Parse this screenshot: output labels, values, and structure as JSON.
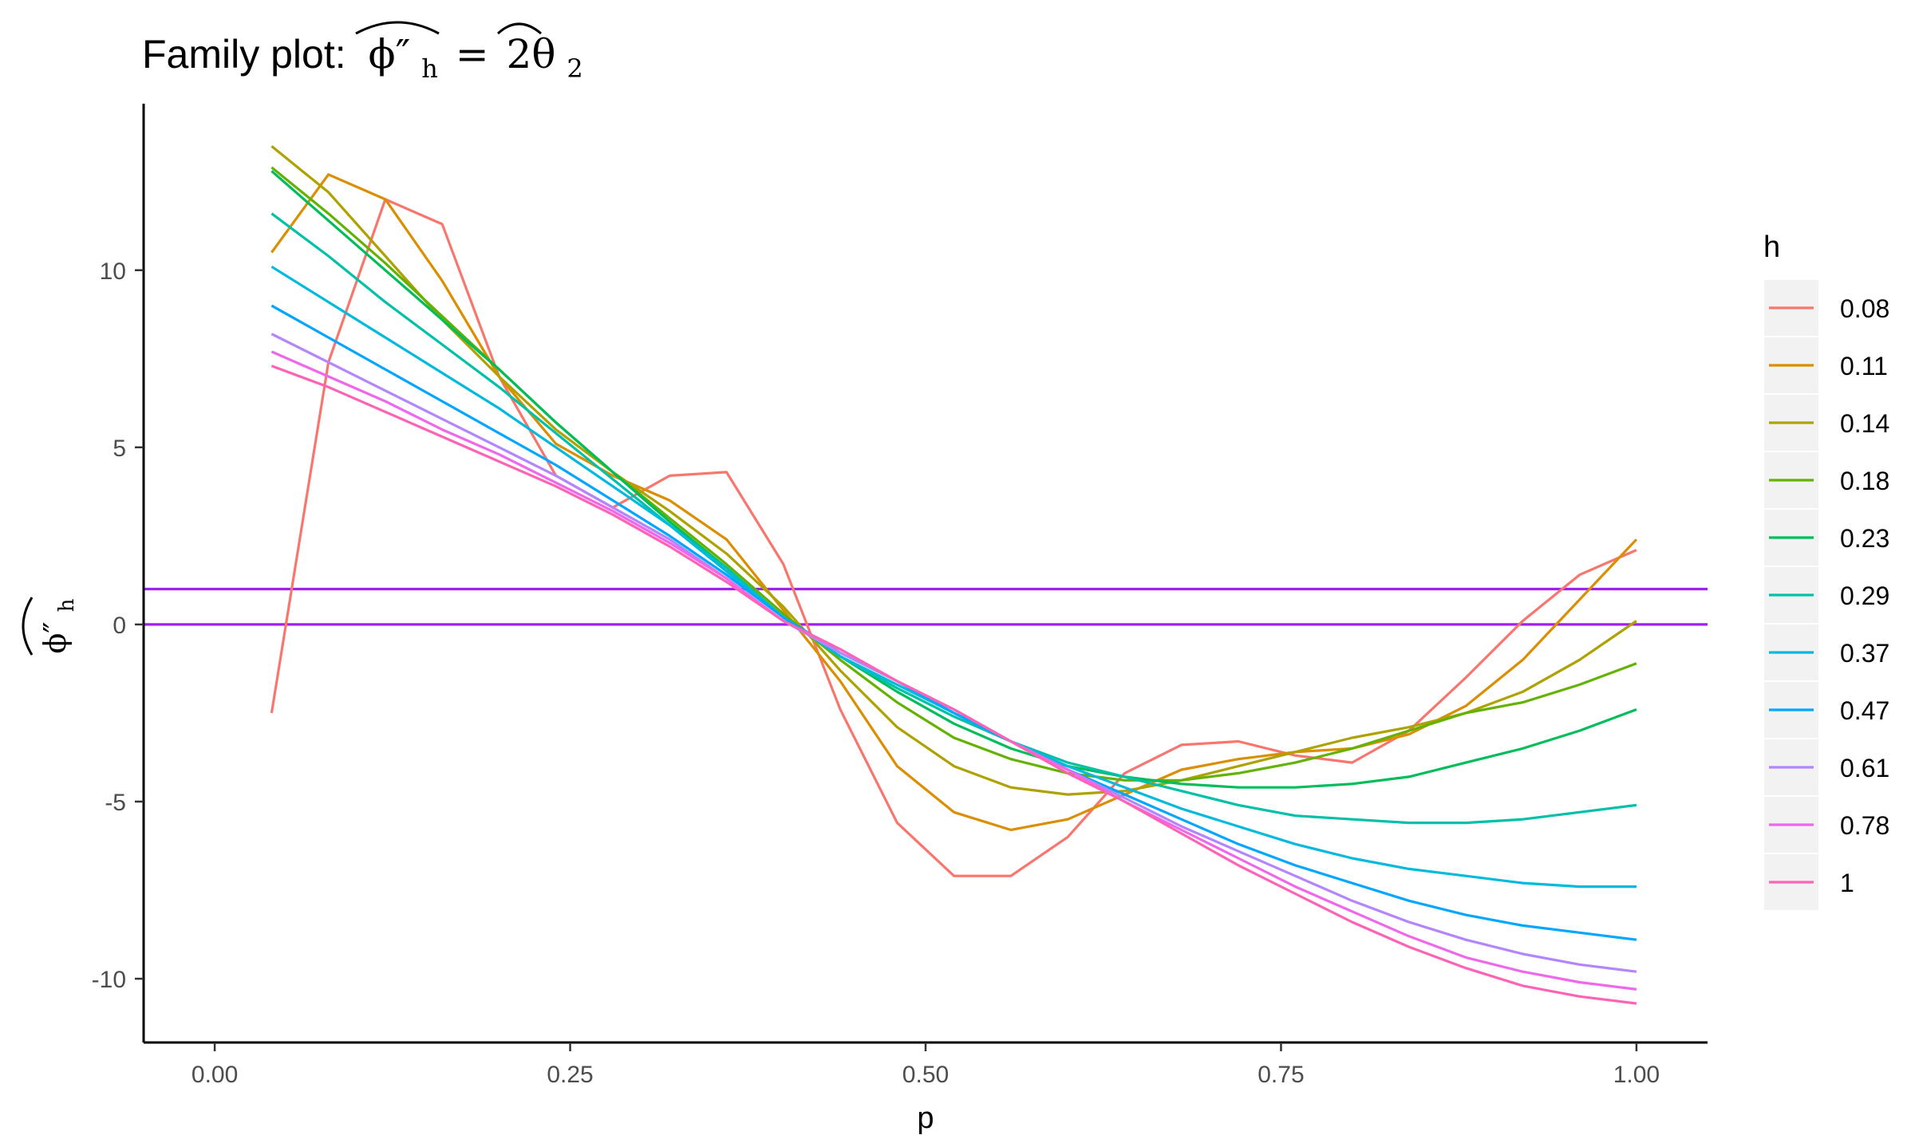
{
  "chart_data": {
    "type": "line",
    "title": "Family plot:",
    "title_math_lhs": "ϕ″",
    "title_math_lhs_sub": "h",
    "title_math_eq": "=",
    "title_math_rhs": "2θ",
    "title_math_rhs_sub": "2",
    "xlabel": "p",
    "ylabel_main": "ϕ″",
    "ylabel_sub": "h",
    "xlim": [
      -0.05,
      1.05
    ],
    "ylim": [
      -11.8,
      14.7
    ],
    "xticks": [
      0.0,
      0.25,
      0.5,
      0.75,
      1.0
    ],
    "xtick_labels": [
      "0.00",
      "0.25",
      "0.50",
      "0.75",
      "1.00"
    ],
    "yticks": [
      -10,
      -5,
      0,
      5,
      10
    ],
    "ytick_labels": [
      "-10",
      "-5",
      "0",
      "5",
      "10"
    ],
    "hlines": [
      {
        "y": 1,
        "color": "#A020F0"
      },
      {
        "y": 0,
        "color": "#A020F0"
      }
    ],
    "legend_title": "h",
    "legend_position": "right",
    "x": [
      0.04,
      0.08,
      0.12,
      0.16,
      0.2,
      0.24,
      0.28,
      0.32,
      0.36,
      0.4,
      0.44,
      0.48,
      0.52,
      0.56,
      0.6,
      0.64,
      0.68,
      0.72,
      0.76,
      0.8,
      0.84,
      0.88,
      0.92,
      0.96,
      1.0
    ],
    "series": [
      {
        "name": "0.08",
        "color": "#F8766D",
        "values": [
          -2.5,
          7.4,
          12.0,
          11.3,
          7.0,
          4.2,
          3.3,
          4.2,
          4.3,
          1.7,
          -2.4,
          -5.6,
          -7.1,
          -7.1,
          -6.0,
          -4.2,
          -3.4,
          -3.3,
          -3.7,
          -3.9,
          -3.0,
          -1.5,
          0.1,
          1.4,
          2.1
        ]
      },
      {
        "name": "0.11",
        "color": "#DB8E00",
        "values": [
          10.5,
          12.7,
          12.0,
          9.7,
          7.0,
          5.1,
          4.2,
          3.5,
          2.4,
          0.4,
          -1.6,
          -4.0,
          -5.3,
          -5.8,
          -5.5,
          -4.8,
          -4.1,
          -3.8,
          -3.6,
          -3.5,
          -3.1,
          -2.3,
          -1.0,
          0.7,
          2.4
        ]
      },
      {
        "name": "0.14",
        "color": "#AEA200",
        "values": [
          13.5,
          12.2,
          10.4,
          8.6,
          7.0,
          5.5,
          4.3,
          3.2,
          2.0,
          0.5,
          -1.3,
          -2.9,
          -4.0,
          -4.6,
          -4.8,
          -4.7,
          -4.4,
          -4.0,
          -3.6,
          -3.2,
          -2.9,
          -2.5,
          -1.9,
          -1.0,
          0.1
        ]
      },
      {
        "name": "0.18",
        "color": "#64B200",
        "values": [
          12.9,
          11.6,
          10.2,
          8.7,
          7.2,
          5.7,
          4.3,
          3.0,
          1.7,
          0.3,
          -1.0,
          -2.2,
          -3.2,
          -3.8,
          -4.2,
          -4.4,
          -4.4,
          -4.2,
          -3.9,
          -3.5,
          -3.0,
          -2.5,
          -2.2,
          -1.7,
          -1.1
        ]
      },
      {
        "name": "0.23",
        "color": "#00BD5C",
        "values": [
          12.8,
          11.4,
          10.0,
          8.6,
          7.2,
          5.7,
          4.3,
          2.9,
          1.6,
          0.2,
          -0.9,
          -1.9,
          -2.8,
          -3.5,
          -4.0,
          -4.3,
          -4.5,
          -4.6,
          -4.6,
          -4.5,
          -4.3,
          -3.9,
          -3.5,
          -3.0,
          -2.4
        ]
      },
      {
        "name": "0.29",
        "color": "#00C1A7",
        "values": [
          11.6,
          10.4,
          9.1,
          7.9,
          6.7,
          5.4,
          4.1,
          2.8,
          1.6,
          0.2,
          -0.9,
          -1.8,
          -2.6,
          -3.3,
          -3.9,
          -4.3,
          -4.7,
          -5.1,
          -5.4,
          -5.5,
          -5.6,
          -5.6,
          -5.5,
          -5.3,
          -5.1
        ]
      },
      {
        "name": "0.37",
        "color": "#00BADE",
        "values": [
          10.1,
          9.1,
          8.1,
          7.1,
          6.1,
          5.0,
          3.9,
          2.8,
          1.5,
          0.2,
          -0.9,
          -1.7,
          -2.5,
          -3.3,
          -4.0,
          -4.6,
          -5.2,
          -5.7,
          -6.2,
          -6.6,
          -6.9,
          -7.1,
          -7.3,
          -7.4,
          -7.4
        ]
      },
      {
        "name": "0.47",
        "color": "#00A6FF",
        "values": [
          9.0,
          8.1,
          7.2,
          6.3,
          5.4,
          4.5,
          3.5,
          2.5,
          1.4,
          0.2,
          -0.8,
          -1.6,
          -2.5,
          -3.3,
          -4.1,
          -4.8,
          -5.5,
          -6.2,
          -6.8,
          -7.3,
          -7.8,
          -8.2,
          -8.5,
          -8.7,
          -8.9
        ]
      },
      {
        "name": "0.61",
        "color": "#B385FF",
        "values": [
          8.2,
          7.4,
          6.6,
          5.8,
          5.0,
          4.2,
          3.3,
          2.4,
          1.3,
          0.1,
          -0.8,
          -1.6,
          -2.4,
          -3.3,
          -4.1,
          -4.9,
          -5.7,
          -6.4,
          -7.1,
          -7.8,
          -8.4,
          -8.9,
          -9.3,
          -9.6,
          -9.8
        ]
      },
      {
        "name": "0.78",
        "color": "#EF67EB",
        "values": [
          7.7,
          7.0,
          6.3,
          5.5,
          4.8,
          4.0,
          3.2,
          2.3,
          1.3,
          0.1,
          -0.7,
          -1.6,
          -2.4,
          -3.3,
          -4.1,
          -5.0,
          -5.8,
          -6.6,
          -7.4,
          -8.1,
          -8.8,
          -9.4,
          -9.8,
          -10.1,
          -10.3
        ]
      },
      {
        "name": "1",
        "color": "#FF63B6",
        "values": [
          7.3,
          6.7,
          6.0,
          5.3,
          4.6,
          3.9,
          3.1,
          2.2,
          1.2,
          0.1,
          -0.7,
          -1.6,
          -2.4,
          -3.3,
          -4.2,
          -5.0,
          -5.9,
          -6.8,
          -7.6,
          -8.4,
          -9.1,
          -9.7,
          -10.2,
          -10.5,
          -10.7
        ]
      }
    ]
  }
}
